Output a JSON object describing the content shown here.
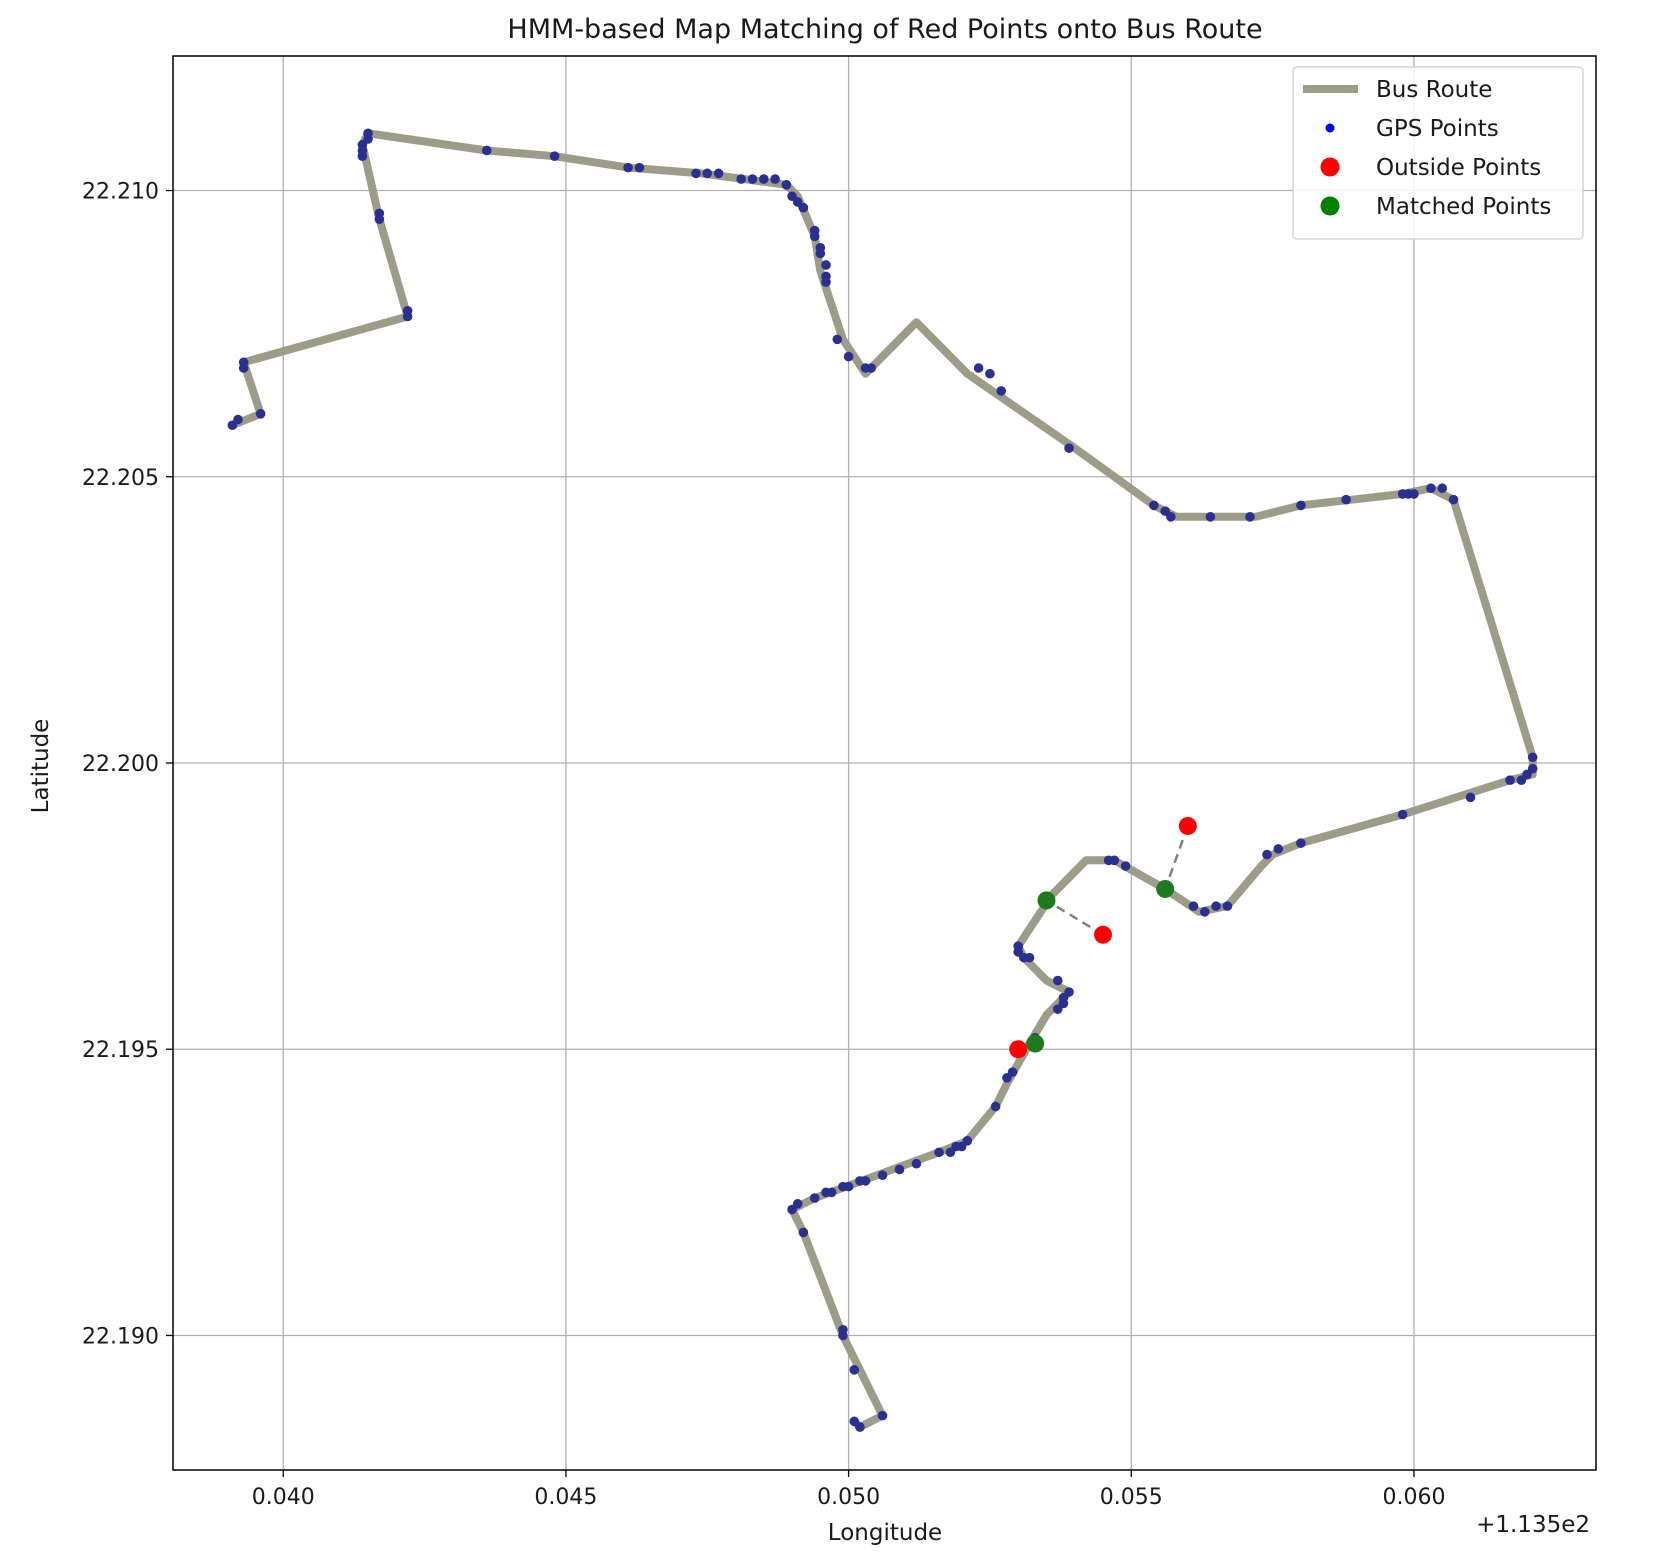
{
  "chart_data": {
    "type": "scatter",
    "title": "HMM-based Map Matching of Red Points onto Bus Route",
    "xlabel": "Longitude",
    "ylabel": "Latitude",
    "x_offset_label": "+1.135e2",
    "xlim": [
      0.03805,
      0.06322
    ],
    "ylim": [
      22.18765,
      22.21235
    ],
    "x_ticks": [
      0.04,
      0.045,
      0.05,
      0.055,
      0.06
    ],
    "x_tick_labels": [
      "0.040",
      "0.045",
      "0.050",
      "0.055",
      "0.060"
    ],
    "y_ticks": [
      22.19,
      22.195,
      22.2,
      22.205,
      22.21
    ],
    "y_tick_labels": [
      "22.190",
      "22.195",
      "22.200",
      "22.205",
      "22.210"
    ],
    "grid": true,
    "legend_position": "top-right",
    "legend": [
      {
        "label": "Bus Route",
        "marker": "line",
        "color": "#9c9c88"
      },
      {
        "label": "GPS Points",
        "marker": "small-dot",
        "color": "#0000ff"
      },
      {
        "label": "Outside Points",
        "marker": "dot",
        "color": "#ff0000"
      },
      {
        "label": "Matched Points",
        "marker": "dot",
        "color": "#008000"
      }
    ],
    "colors": {
      "route": "#9c9c88",
      "gps": "#2b2f8f",
      "outside": "#ff0000",
      "matched": "#1f7a1f",
      "connector": "#808080",
      "grid": "#b0b0b0"
    },
    "series": [
      {
        "name": "Bus Route",
        "kind": "line",
        "points": [
          [
            0.0391,
            22.2059
          ],
          [
            0.0396,
            22.2061
          ],
          [
            0.0393,
            22.207
          ],
          [
            0.0422,
            22.2078
          ],
          [
            0.0417,
            22.2095
          ],
          [
            0.0414,
            22.2108
          ],
          [
            0.0415,
            22.211
          ],
          [
            0.0436,
            22.2107
          ],
          [
            0.0448,
            22.2106
          ],
          [
            0.0461,
            22.2104
          ],
          [
            0.0474,
            22.2103
          ],
          [
            0.0489,
            22.2101
          ],
          [
            0.0491,
            22.2099
          ],
          [
            0.0494,
            22.2092
          ],
          [
            0.0495,
            22.2086
          ],
          [
            0.0499,
            22.2074
          ],
          [
            0.0503,
            22.2068
          ],
          [
            0.0512,
            22.2077
          ],
          [
            0.0521,
            22.2068
          ],
          [
            0.054,
            22.2055
          ],
          [
            0.0554,
            22.2045
          ],
          [
            0.0558,
            22.2043
          ],
          [
            0.0564,
            22.2043
          ],
          [
            0.0572,
            22.2043
          ],
          [
            0.058,
            22.2045
          ],
          [
            0.0589,
            22.2046
          ],
          [
            0.0598,
            22.2047
          ],
          [
            0.0603,
            22.2048
          ],
          [
            0.0607,
            22.2046
          ],
          [
            0.0621,
            22.2001
          ],
          [
            0.0621,
            22.1998
          ],
          [
            0.0617,
            22.1997
          ],
          [
            0.0598,
            22.1991
          ],
          [
            0.058,
            22.1986
          ],
          [
            0.0575,
            22.1984
          ],
          [
            0.0573,
            22.1982
          ],
          [
            0.0567,
            22.1975
          ],
          [
            0.0562,
            22.1974
          ],
          [
            0.0556,
            22.1978
          ],
          [
            0.0547,
            22.1983
          ],
          [
            0.0542,
            22.1983
          ],
          [
            0.0536,
            22.1977
          ],
          [
            0.053,
            22.1968
          ],
          [
            0.0531,
            22.1966
          ],
          [
            0.0535,
            22.1962
          ],
          [
            0.0539,
            22.196
          ],
          [
            0.0535,
            22.1956
          ],
          [
            0.0532,
            22.1951
          ],
          [
            0.0528,
            22.1944
          ],
          [
            0.0526,
            22.194
          ],
          [
            0.0521,
            22.1934
          ],
          [
            0.0516,
            22.1932
          ],
          [
            0.0505,
            22.1928
          ],
          [
            0.0494,
            22.1924
          ],
          [
            0.049,
            22.1922
          ],
          [
            0.0492,
            22.1918
          ],
          [
            0.0499,
            22.19
          ],
          [
            0.0506,
            22.1886
          ],
          [
            0.0502,
            22.1884
          ],
          [
            0.0501,
            22.1885
          ]
        ]
      },
      {
        "name": "GPS Points",
        "kind": "scatter",
        "points": [
          [
            0.0391,
            22.2059
          ],
          [
            0.0392,
            22.206
          ],
          [
            0.0396,
            22.2061
          ],
          [
            0.0393,
            22.2069
          ],
          [
            0.0393,
            22.207
          ],
          [
            0.0422,
            22.2078
          ],
          [
            0.0422,
            22.2079
          ],
          [
            0.0417,
            22.2096
          ],
          [
            0.0417,
            22.2095
          ],
          [
            0.0414,
            22.2106
          ],
          [
            0.0414,
            22.2107
          ],
          [
            0.0414,
            22.2108
          ],
          [
            0.0415,
            22.2109
          ],
          [
            0.0415,
            22.211
          ],
          [
            0.0436,
            22.2107
          ],
          [
            0.0448,
            22.2106
          ],
          [
            0.0461,
            22.2104
          ],
          [
            0.0463,
            22.2104
          ],
          [
            0.0473,
            22.2103
          ],
          [
            0.0475,
            22.2103
          ],
          [
            0.0477,
            22.2103
          ],
          [
            0.0481,
            22.2102
          ],
          [
            0.0483,
            22.2102
          ],
          [
            0.0485,
            22.2102
          ],
          [
            0.0487,
            22.2102
          ],
          [
            0.0489,
            22.2101
          ],
          [
            0.049,
            22.2099
          ],
          [
            0.0491,
            22.2098
          ],
          [
            0.0492,
            22.2097
          ],
          [
            0.0494,
            22.2093
          ],
          [
            0.0494,
            22.2092
          ],
          [
            0.0495,
            22.209
          ],
          [
            0.0495,
            22.2089
          ],
          [
            0.0496,
            22.2087
          ],
          [
            0.0496,
            22.2085
          ],
          [
            0.0496,
            22.2084
          ],
          [
            0.0498,
            22.2074
          ],
          [
            0.05,
            22.2071
          ],
          [
            0.0503,
            22.2069
          ],
          [
            0.0504,
            22.2069
          ],
          [
            0.0523,
            22.2069
          ],
          [
            0.0525,
            22.2068
          ],
          [
            0.0527,
            22.2065
          ],
          [
            0.0539,
            22.2055
          ],
          [
            0.0554,
            22.2045
          ],
          [
            0.0556,
            22.2044
          ],
          [
            0.0557,
            22.2043
          ],
          [
            0.0564,
            22.2043
          ],
          [
            0.0571,
            22.2043
          ],
          [
            0.058,
            22.2045
          ],
          [
            0.0588,
            22.2046
          ],
          [
            0.0598,
            22.2047
          ],
          [
            0.0599,
            22.2047
          ],
          [
            0.06,
            22.2047
          ],
          [
            0.0603,
            22.2048
          ],
          [
            0.0605,
            22.2048
          ],
          [
            0.0607,
            22.2046
          ],
          [
            0.0621,
            22.2001
          ],
          [
            0.0621,
            22.1999
          ],
          [
            0.062,
            22.1998
          ],
          [
            0.0619,
            22.1997
          ],
          [
            0.0617,
            22.1997
          ],
          [
            0.061,
            22.1994
          ],
          [
            0.0598,
            22.1991
          ],
          [
            0.058,
            22.1986
          ],
          [
            0.0576,
            22.1985
          ],
          [
            0.0574,
            22.1984
          ],
          [
            0.0567,
            22.1975
          ],
          [
            0.0565,
            22.1975
          ],
          [
            0.0563,
            22.1974
          ],
          [
            0.0561,
            22.1975
          ],
          [
            0.0549,
            22.1982
          ],
          [
            0.0547,
            22.1983
          ],
          [
            0.0546,
            22.1983
          ],
          [
            0.053,
            22.1968
          ],
          [
            0.053,
            22.1967
          ],
          [
            0.0531,
            22.1966
          ],
          [
            0.0532,
            22.1966
          ],
          [
            0.0537,
            22.1962
          ],
          [
            0.0539,
            22.196
          ],
          [
            0.0538,
            22.1959
          ],
          [
            0.0538,
            22.1958
          ],
          [
            0.0537,
            22.1957
          ],
          [
            0.0533,
            22.1952
          ],
          [
            0.0529,
            22.1946
          ],
          [
            0.0528,
            22.1945
          ],
          [
            0.0526,
            22.194
          ],
          [
            0.0521,
            22.1934
          ],
          [
            0.052,
            22.1933
          ],
          [
            0.0519,
            22.1933
          ],
          [
            0.0518,
            22.1932
          ],
          [
            0.0516,
            22.1932
          ],
          [
            0.0512,
            22.193
          ],
          [
            0.0509,
            22.1929
          ],
          [
            0.0506,
            22.1928
          ],
          [
            0.0503,
            22.1927
          ],
          [
            0.0502,
            22.1927
          ],
          [
            0.05,
            22.1926
          ],
          [
            0.0499,
            22.1926
          ],
          [
            0.0497,
            22.1925
          ],
          [
            0.0496,
            22.1925
          ],
          [
            0.0494,
            22.1924
          ],
          [
            0.0491,
            22.1923
          ],
          [
            0.049,
            22.1922
          ],
          [
            0.0492,
            22.1918
          ],
          [
            0.0499,
            22.19
          ],
          [
            0.0499,
            22.1901
          ],
          [
            0.0501,
            22.1894
          ],
          [
            0.0506,
            22.1886
          ],
          [
            0.0502,
            22.1884
          ],
          [
            0.0501,
            22.1885
          ]
        ]
      },
      {
        "name": "Outside Points",
        "kind": "scatter",
        "points": [
          [
            0.056,
            22.1989
          ],
          [
            0.0545,
            22.197
          ],
          [
            0.053,
            22.195
          ]
        ]
      },
      {
        "name": "Matched Points",
        "kind": "scatter",
        "points": [
          [
            0.0556,
            22.1978
          ],
          [
            0.0535,
            22.1976
          ],
          [
            0.0533,
            22.1951
          ]
        ]
      }
    ]
  }
}
